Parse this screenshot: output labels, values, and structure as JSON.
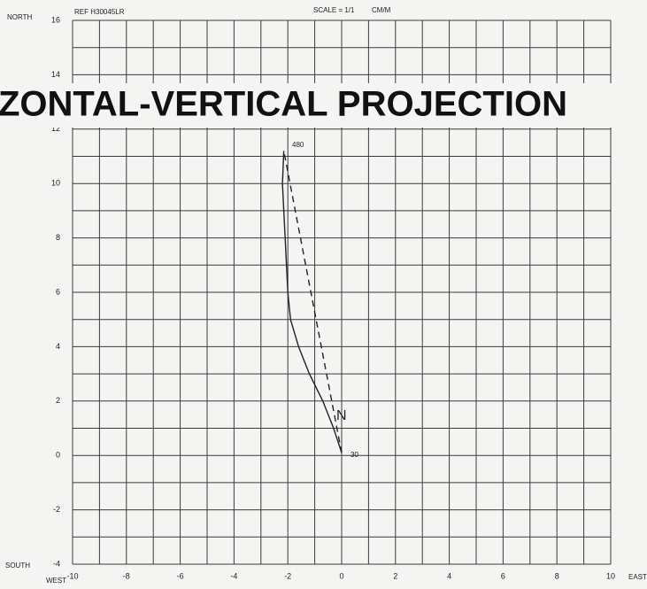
{
  "chart_data": {
    "type": "line",
    "title": "ZONTAL-VERTICAL PROJECTION",
    "reference": "REF  H30045LR",
    "scale": "SCALE = 1/1",
    "units": "CM/M",
    "direction_labels": {
      "north": "NORTH",
      "south": "SOUTH",
      "west": "WEST",
      "east": "EAST"
    },
    "annotations": [
      "480",
      "30",
      "N"
    ],
    "xlim": [
      -10,
      10
    ],
    "ylim": [
      -4,
      16
    ],
    "xticks": [
      -10,
      -8,
      -6,
      -4,
      -2,
      0,
      2,
      4,
      6,
      8,
      10
    ],
    "yticks": [
      -4,
      -2,
      0,
      2,
      4,
      6,
      8,
      10,
      12,
      14,
      16
    ],
    "minor_xticks": [
      -9,
      -7,
      -5,
      -3,
      -1,
      1,
      3,
      5,
      7,
      9
    ],
    "minor_yticks": [
      -3,
      -1,
      1,
      3,
      5,
      7,
      9,
      11,
      13,
      15
    ],
    "grid": true,
    "series": [
      {
        "color": "#222222",
        "style": "solid",
        "x": [
          0,
          -0.3,
          -0.7,
          -1.2,
          -1.6,
          -1.9,
          -2.0,
          -2.05,
          -2.1,
          -2.15,
          -2.2,
          -2.15
        ],
        "values": [
          0.1,
          1,
          2,
          3,
          4,
          5,
          6,
          7,
          8,
          9,
          10,
          11.2
        ]
      },
      {
        "color": "#222222",
        "style": "dashed",
        "x": [
          0,
          -2.15
        ],
        "values": [
          0.1,
          11.2
        ]
      }
    ]
  }
}
